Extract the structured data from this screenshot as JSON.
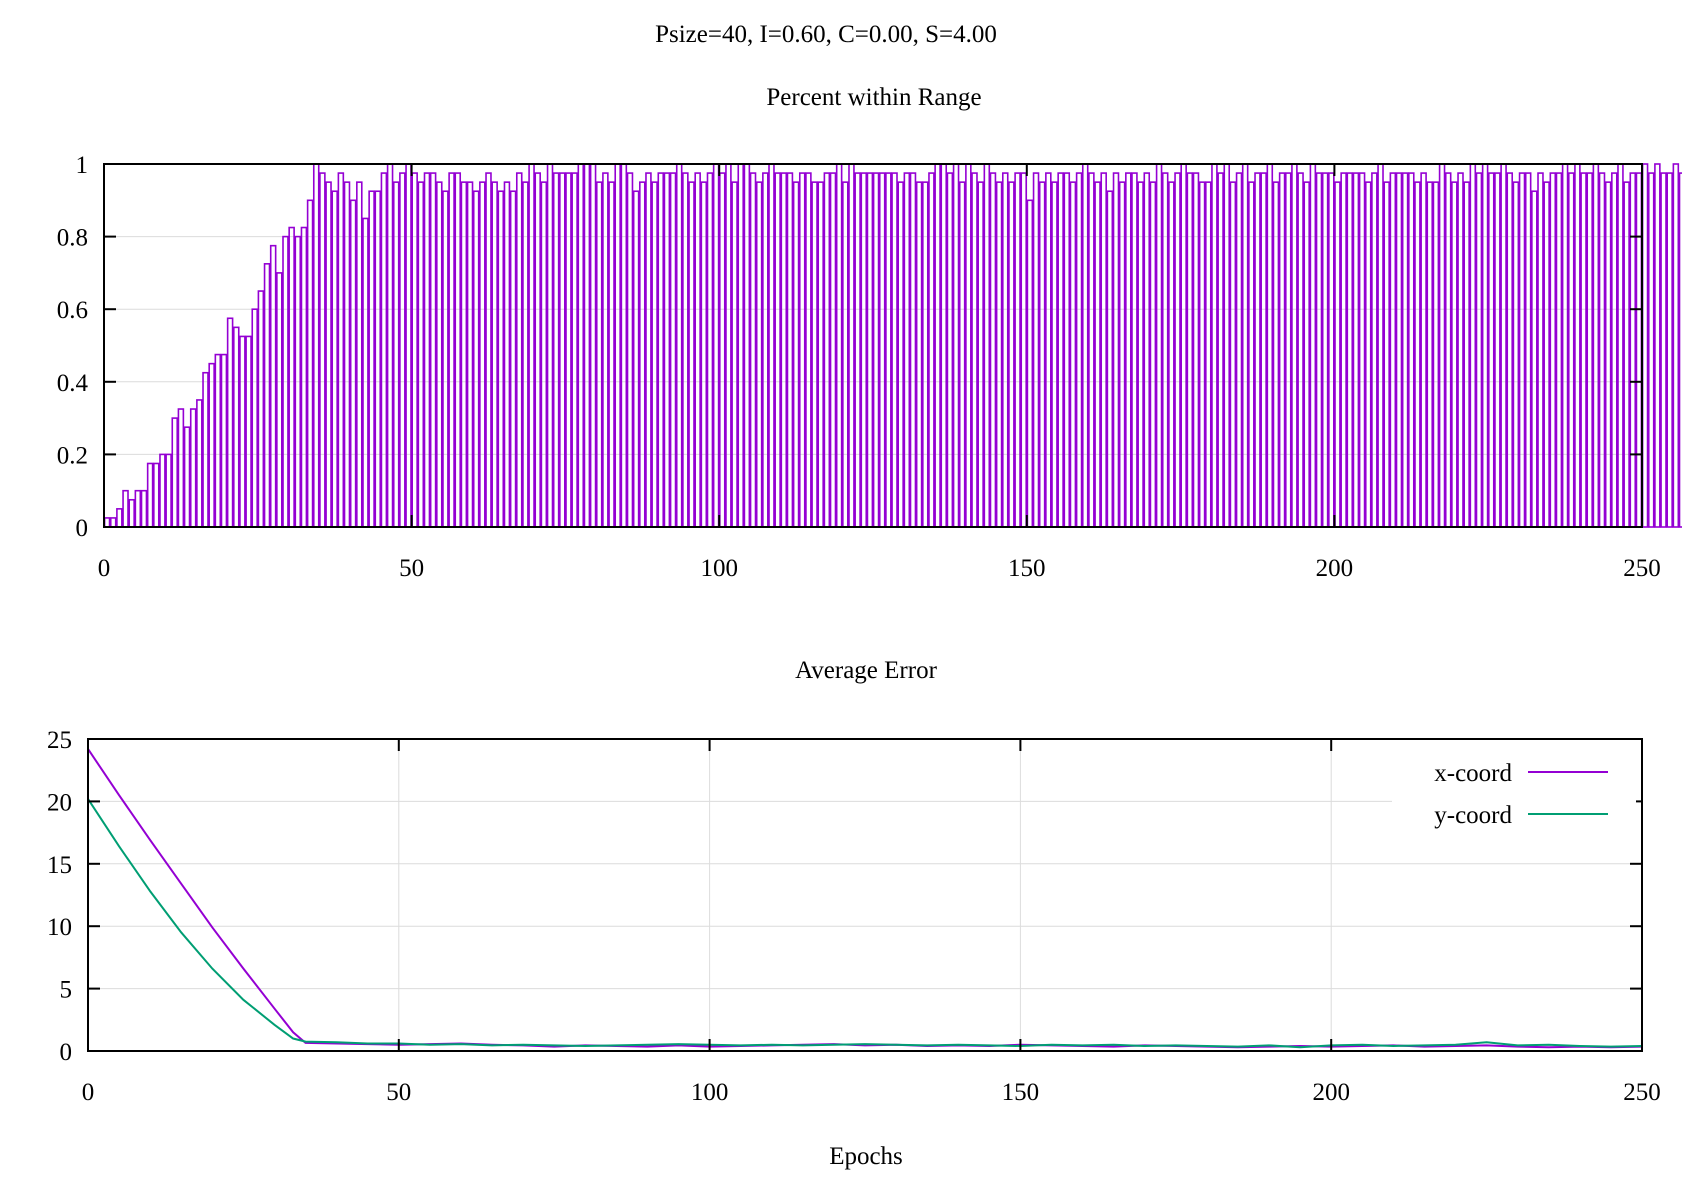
{
  "figure_title": "Psize=40, I=0.60, C=0.00, S=4.00",
  "colors": {
    "purple": "#9400d3",
    "teal": "#009e73",
    "grid": "#dcdcdc"
  },
  "chart_data": [
    {
      "type": "bar",
      "title": "Percent within Range",
      "xlabel": "",
      "ylabel": "",
      "xlim": [
        0,
        250
      ],
      "ylim": [
        0,
        1
      ],
      "xticks": [
        "0",
        "50",
        "100",
        "150",
        "200",
        "250"
      ],
      "yticks": [
        "0",
        "0.2",
        "0.4",
        "0.6",
        "0.8",
        "1"
      ],
      "grid": true,
      "color": "#9400d3",
      "x_start": 0,
      "x_step": 1,
      "values": [
        0.025,
        0.025,
        0.05,
        0.1,
        0.075,
        0.1,
        0.1,
        0.175,
        0.175,
        0.2,
        0.2,
        0.3,
        0.325,
        0.275,
        0.325,
        0.35,
        0.425,
        0.45,
        0.475,
        0.475,
        0.575,
        0.55,
        0.525,
        0.525,
        0.6,
        0.65,
        0.725,
        0.775,
        0.7,
        0.8,
        0.825,
        0.8,
        0.825,
        0.9,
        1.0,
        0.975,
        0.95,
        0.925,
        0.975,
        0.95,
        0.9,
        0.95,
        0.85,
        0.925,
        0.925,
        0.975,
        1.0,
        0.95,
        0.975,
        1.0,
        0.975,
        0.95,
        0.975,
        0.975,
        0.95,
        0.925,
        0.975,
        0.975,
        0.95,
        0.95,
        0.925,
        0.95,
        0.975,
        0.95,
        0.925,
        0.95,
        0.925,
        0.975,
        0.95,
        1.0,
        0.975,
        0.95,
        1.0,
        0.975,
        0.975,
        0.975,
        0.975,
        1.0,
        1.0,
        1.0,
        0.95,
        0.975,
        0.95,
        1.0,
        1.0,
        0.975,
        0.925,
        0.95,
        0.975,
        0.95,
        0.975,
        0.975,
        0.975,
        1.0,
        0.975,
        0.95,
        0.975,
        0.95,
        0.975,
        1.0,
        0.975,
        1.0,
        0.95,
        1.0,
        1.0,
        0.975,
        0.95,
        0.975,
        1.0,
        0.975,
        0.975,
        0.975,
        0.95,
        0.975,
        0.975,
        0.95,
        0.95,
        0.975,
        0.975,
        1.0,
        0.95,
        1.0,
        0.975,
        0.975,
        0.975,
        0.975,
        0.975,
        0.975,
        0.975,
        0.95,
        0.975,
        0.975,
        0.95,
        0.95,
        0.975,
        1.0,
        1.0,
        0.975,
        1.0,
        0.95,
        1.0,
        0.975,
        0.95,
        1.0,
        0.975,
        0.95,
        0.975,
        0.95,
        0.975,
        0.975,
        0.9,
        0.975,
        0.95,
        0.975,
        0.95,
        0.975,
        0.975,
        0.95,
        0.975,
        1.0,
        0.975,
        0.95,
        0.975,
        0.925,
        0.975,
        0.95,
        0.975,
        0.975,
        0.95,
        0.975,
        0.95,
        1.0,
        0.975,
        0.95,
        0.975,
        1.0,
        0.975,
        0.975,
        0.95,
        0.95,
        1.0,
        0.975,
        1.0,
        0.95,
        0.975,
        1.0,
        0.95,
        0.975,
        0.975,
        1.0,
        0.95,
        0.975,
        0.975,
        1.0,
        0.975,
        0.95,
        1.0,
        0.975,
        0.975,
        0.975,
        0.95,
        0.975,
        0.975,
        0.975,
        0.975,
        0.95,
        0.975,
        1.0,
        0.95,
        0.975,
        0.975,
        0.975,
        0.975,
        0.95,
        0.975,
        0.95,
        0.95,
        1.0,
        0.975,
        0.95,
        0.975,
        0.95,
        1.0,
        0.975,
        1.0,
        0.975,
        0.975,
        1.0,
        0.975,
        0.95,
        0.975,
        0.975,
        0.925,
        0.975,
        0.95,
        0.975,
        0.975,
        1.0,
        0.975,
        1.0,
        0.975,
        0.975,
        1.0,
        0.975,
        0.95,
        0.975,
        1.0,
        0.95,
        0.975,
        0.975,
        1.0,
        0.975,
        1.0,
        0.975,
        0.975,
        1.0,
        0.975
      ]
    },
    {
      "type": "line",
      "title": "Average Error",
      "xlabel": "Epochs",
      "ylabel": "",
      "xlim": [
        0,
        250
      ],
      "ylim": [
        0,
        25
      ],
      "xticks": [
        "0",
        "50",
        "100",
        "150",
        "200",
        "250"
      ],
      "yticks": [
        "0",
        "5",
        "10",
        "15",
        "20",
        "25"
      ],
      "grid": true,
      "legend": "top-right",
      "series": [
        {
          "name": "x-coord",
          "color": "#9400d3",
          "points": [
            [
              0,
              24.2
            ],
            [
              5,
              20.5
            ],
            [
              10,
              16.9
            ],
            [
              15,
              13.4
            ],
            [
              20,
              9.9
            ],
            [
              25,
              6.6
            ],
            [
              30,
              3.4
            ],
            [
              33,
              1.5
            ],
            [
              35,
              0.65
            ],
            [
              40,
              0.6
            ],
            [
              45,
              0.55
            ],
            [
              50,
              0.5
            ],
            [
              55,
              0.55
            ],
            [
              60,
              0.6
            ],
            [
              65,
              0.5
            ],
            [
              70,
              0.45
            ],
            [
              75,
              0.35
            ],
            [
              80,
              0.45
            ],
            [
              85,
              0.4
            ],
            [
              90,
              0.35
            ],
            [
              95,
              0.45
            ],
            [
              100,
              0.35
            ],
            [
              105,
              0.4
            ],
            [
              110,
              0.45
            ],
            [
              115,
              0.5
            ],
            [
              120,
              0.55
            ],
            [
              125,
              0.45
            ],
            [
              130,
              0.5
            ],
            [
              135,
              0.4
            ],
            [
              140,
              0.45
            ],
            [
              145,
              0.4
            ],
            [
              150,
              0.5
            ],
            [
              155,
              0.45
            ],
            [
              160,
              0.4
            ],
            [
              165,
              0.35
            ],
            [
              170,
              0.45
            ],
            [
              175,
              0.4
            ],
            [
              180,
              0.35
            ],
            [
              185,
              0.3
            ],
            [
              190,
              0.35
            ],
            [
              195,
              0.4
            ],
            [
              200,
              0.35
            ],
            [
              205,
              0.4
            ],
            [
              210,
              0.45
            ],
            [
              215,
              0.35
            ],
            [
              220,
              0.4
            ],
            [
              225,
              0.45
            ],
            [
              230,
              0.35
            ],
            [
              235,
              0.3
            ],
            [
              240,
              0.35
            ],
            [
              245,
              0.3
            ],
            [
              250,
              0.35
            ]
          ]
        },
        {
          "name": "y-coord",
          "color": "#009e73",
          "points": [
            [
              0,
              20.2
            ],
            [
              5,
              16.4
            ],
            [
              10,
              12.8
            ],
            [
              15,
              9.5
            ],
            [
              20,
              6.6
            ],
            [
              25,
              4.1
            ],
            [
              30,
              2.1
            ],
            [
              33,
              1.0
            ],
            [
              35,
              0.75
            ],
            [
              40,
              0.7
            ],
            [
              45,
              0.6
            ],
            [
              50,
              0.6
            ],
            [
              55,
              0.5
            ],
            [
              60,
              0.55
            ],
            [
              65,
              0.45
            ],
            [
              70,
              0.5
            ],
            [
              75,
              0.45
            ],
            [
              80,
              0.4
            ],
            [
              85,
              0.45
            ],
            [
              90,
              0.5
            ],
            [
              95,
              0.55
            ],
            [
              100,
              0.5
            ],
            [
              105,
              0.45
            ],
            [
              110,
              0.5
            ],
            [
              115,
              0.45
            ],
            [
              120,
              0.5
            ],
            [
              125,
              0.55
            ],
            [
              130,
              0.5
            ],
            [
              135,
              0.45
            ],
            [
              140,
              0.5
            ],
            [
              145,
              0.45
            ],
            [
              150,
              0.4
            ],
            [
              155,
              0.5
            ],
            [
              160,
              0.45
            ],
            [
              165,
              0.5
            ],
            [
              170,
              0.4
            ],
            [
              175,
              0.45
            ],
            [
              180,
              0.4
            ],
            [
              185,
              0.35
            ],
            [
              190,
              0.45
            ],
            [
              195,
              0.3
            ],
            [
              200,
              0.45
            ],
            [
              205,
              0.5
            ],
            [
              210,
              0.4
            ],
            [
              215,
              0.45
            ],
            [
              220,
              0.5
            ],
            [
              225,
              0.7
            ],
            [
              230,
              0.45
            ],
            [
              235,
              0.5
            ],
            [
              240,
              0.4
            ],
            [
              245,
              0.35
            ],
            [
              250,
              0.4
            ]
          ]
        }
      ]
    }
  ]
}
